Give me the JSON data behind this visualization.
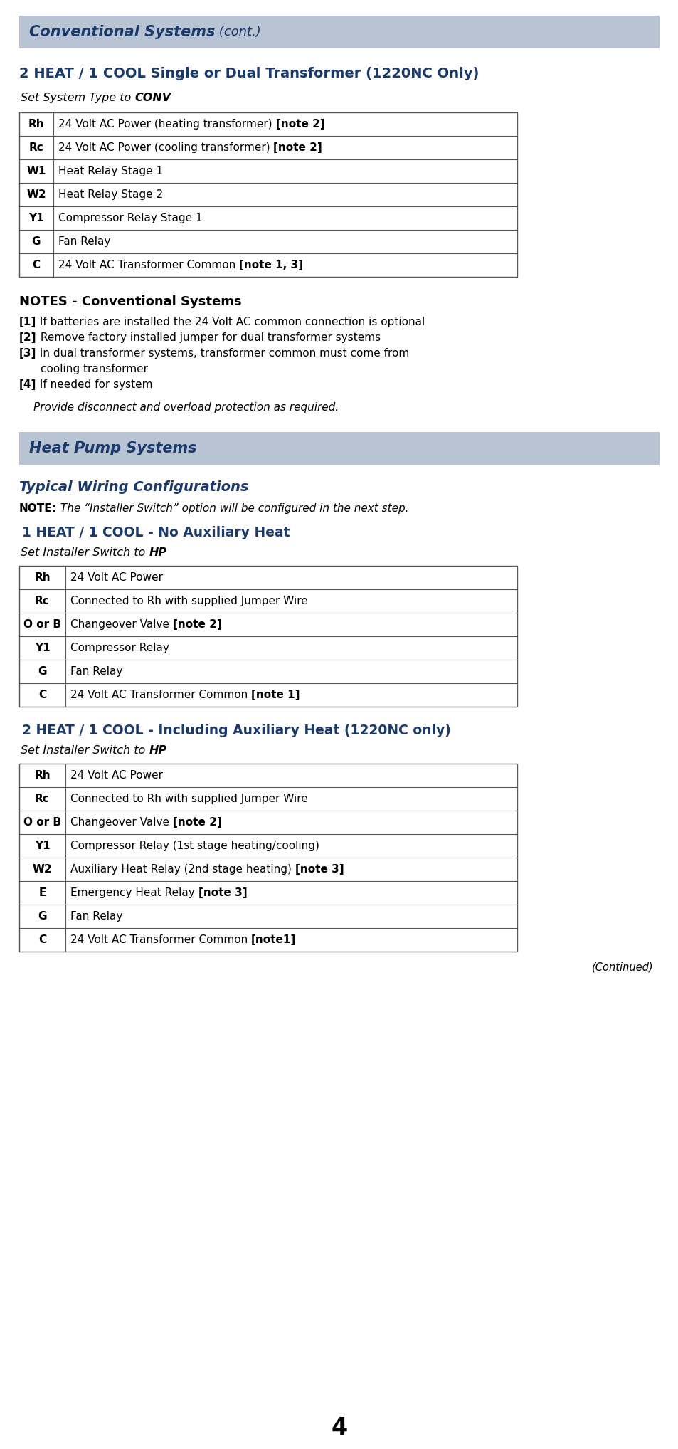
{
  "page_bg": "#ffffff",
  "header_bg": "#b8c4d4",
  "header_text_color": "#1a3a6b",
  "section_title_color": "#1a3a6b",
  "body_text_color": "#000000",
  "table_border_color": "#555555",
  "page_number": "4",
  "conv_header_bold": "Conventional Systems",
  "conv_header_normal": " (cont.)",
  "conv_section_title": "2 HEAT / 1 COOL Single or Dual Transformer (1220NC Only)",
  "conv_table": [
    [
      "Rh",
      "24 Volt AC Power (heating transformer) ",
      "[note 2]"
    ],
    [
      "Rc",
      "24 Volt AC Power (cooling transformer) ",
      "[note 2]"
    ],
    [
      "W1",
      "Heat Relay Stage 1",
      ""
    ],
    [
      "W2",
      "Heat Relay Stage 2",
      ""
    ],
    [
      "Y1",
      "Compressor Relay Stage 1",
      ""
    ],
    [
      "G",
      "Fan Relay",
      ""
    ],
    [
      "C",
      "24 Volt AC Transformer Common ",
      "[note 1, 3]"
    ]
  ],
  "conv_notes_title": "NOTES - Conventional Systems",
  "conv_notes": [
    {
      "bracket": "[1]",
      "text": " If batteries are installed the 24 Volt AC common connection is optional"
    },
    {
      "bracket": "[2]",
      "text": " Remove factory installed jumper for dual transformer systems"
    },
    {
      "bracket": "[3]",
      "text": " In dual transformer systems, transformer common must come from"
    },
    {
      "bracket": "",
      "text": "      cooling transformer"
    },
    {
      "bracket": "[4]",
      "text": " If needed for system"
    }
  ],
  "conv_italic_note": "Provide disconnect and overload protection as required.",
  "hp_header": "Heat Pump Systems",
  "hp_typical_title": "Typical Wiring Configurations",
  "hp1_title": "1 HEAT / 1 COOL - No Auxiliary Heat",
  "hp1_table": [
    [
      "Rh",
      "24 Volt AC Power",
      ""
    ],
    [
      "Rc",
      "Connected to Rh with supplied Jumper Wire",
      ""
    ],
    [
      "O or B",
      "Changeover Valve ",
      "[note 2]"
    ],
    [
      "Y1",
      "Compressor Relay",
      ""
    ],
    [
      "G",
      "Fan Relay",
      ""
    ],
    [
      "C",
      "24 Volt AC Transformer Common ",
      "[note 1]"
    ]
  ],
  "hp2_title": "2 HEAT / 1 COOL - Including Auxiliary Heat (1220NC only)",
  "hp2_table": [
    [
      "Rh",
      "24 Volt AC Power",
      ""
    ],
    [
      "Rc",
      "Connected to Rh with supplied Jumper Wire",
      ""
    ],
    [
      "O or B",
      "Changeover Valve ",
      "[note 2]"
    ],
    [
      "Y1",
      "Compressor Relay (1st stage heating/cooling)",
      ""
    ],
    [
      "W2",
      "Auxiliary Heat Relay (2nd stage heating) ",
      "[note 3]"
    ],
    [
      "E",
      "Emergency Heat Relay ",
      "[note 3]"
    ],
    [
      "G",
      "Fan Relay",
      ""
    ],
    [
      "C",
      "24 Volt AC Transformer Common ",
      "[note1]"
    ]
  ],
  "continued_text": "(Continued)"
}
